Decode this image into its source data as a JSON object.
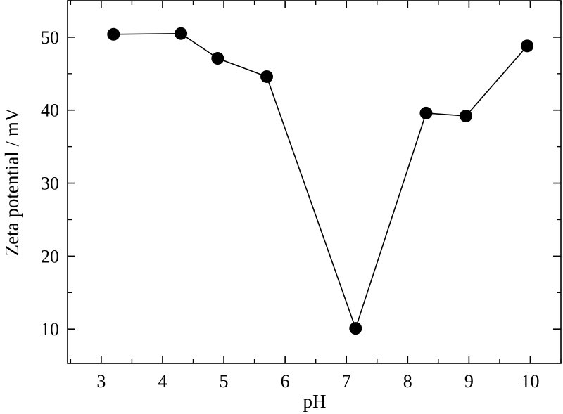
{
  "chart_data": {
    "type": "line",
    "xlabel": "pH",
    "ylabel": "Zeta potential / mV",
    "xlim": [
      2.45,
      10.5
    ],
    "ylim": [
      5.3,
      55
    ],
    "xticks": [
      3,
      4,
      5,
      6,
      7,
      8,
      9,
      10
    ],
    "yticks": [
      10,
      20,
      30,
      40,
      50
    ],
    "x_minor_step": 0.5,
    "y_minor_step": 5,
    "grid": false,
    "series": [
      {
        "x": [
          3.2,
          4.3,
          4.9,
          5.7,
          7.15,
          8.3,
          8.95,
          9.95
        ],
        "y": [
          50.4,
          50.5,
          47.1,
          44.6,
          10.1,
          39.6,
          39.2,
          48.8
        ],
        "marker": "filled-circle",
        "color": "#000000"
      }
    ]
  }
}
